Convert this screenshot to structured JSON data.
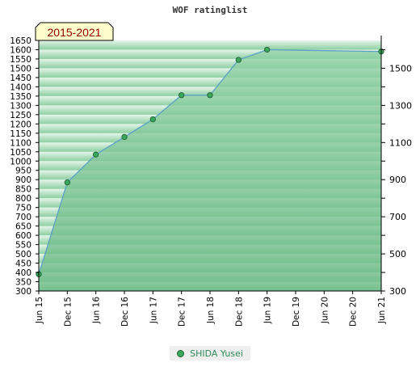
{
  "title": "WOF ratinglist",
  "period_label": "2015-2021",
  "legend": {
    "series_name": "SHIDA Yusei"
  },
  "colors": {
    "line": "#5aa0c8",
    "area": "#7dc596",
    "marker": "#3aa85a",
    "marker_edge": "#1f5f32",
    "stripe_dark": "#8ccfa1",
    "stripe_light": "#e6f4ea",
    "label_bg": "#fffccc"
  },
  "chart_data": {
    "type": "area",
    "title": "WOF ratinglist",
    "x_tick_labels": [
      "Jun 15",
      "Dec 15",
      "Jun 16",
      "Dec 16",
      "Jun 17",
      "Dec 17",
      "Jun 18",
      "Dec 18",
      "Jun 19",
      "Dec 19",
      "Jun 20",
      "Dec 20",
      "Jun 21"
    ],
    "left_axis": {
      "ylim": [
        300,
        1650
      ],
      "ticks": [
        300,
        350,
        400,
        450,
        500,
        550,
        600,
        650,
        700,
        750,
        800,
        850,
        900,
        950,
        1000,
        1050,
        1100,
        1150,
        1200,
        1250,
        1300,
        1350,
        1400,
        1450,
        1500,
        1550,
        1600,
        1650
      ]
    },
    "right_axis": {
      "ylim": [
        300,
        1650
      ],
      "ticks": [
        300,
        500,
        700,
        900,
        1100,
        1300,
        1500
      ]
    },
    "series": [
      {
        "name": "SHIDA Yusei",
        "points": [
          {
            "x": "Jun 15",
            "y": 390
          },
          {
            "x": "Dec 15",
            "y": 885
          },
          {
            "x": "Jun 16",
            "y": 1035
          },
          {
            "x": "Dec 16",
            "y": 1130
          },
          {
            "x": "Jun 17",
            "y": 1225
          },
          {
            "x": "Dec 17",
            "y": 1355
          },
          {
            "x": "Jun 18",
            "y": 1355
          },
          {
            "x": "Dec 18",
            "y": 1545
          },
          {
            "x": "Jun 19",
            "y": 1600
          },
          {
            "x": "Jun 21",
            "y": 1590
          }
        ]
      }
    ],
    "grid": true,
    "legend_position": "bottom"
  }
}
